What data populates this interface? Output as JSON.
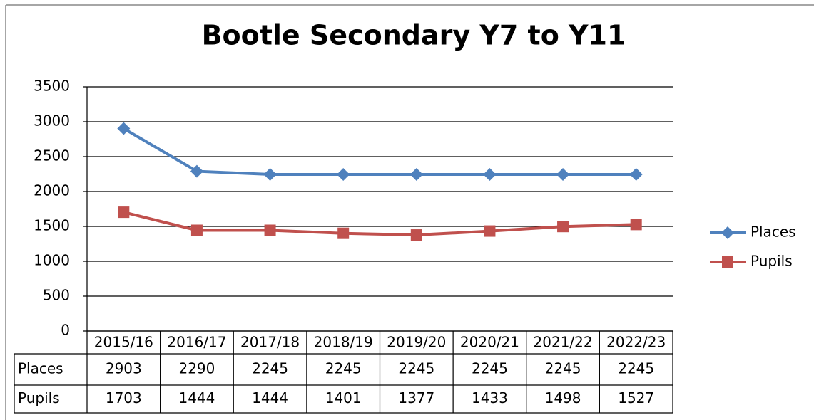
{
  "chart_data": {
    "type": "line",
    "title": "Bootle Secondary Y7 to Y11",
    "categories": [
      "2015/16",
      "2016/17",
      "2017/18",
      "2018/19",
      "2019/20",
      "2020/21",
      "2021/22",
      "2022/23"
    ],
    "series": [
      {
        "name": "Places",
        "color": "#4f81bd",
        "values": [
          2903,
          2290,
          2245,
          2245,
          2245,
          2245,
          2245,
          2245
        ]
      },
      {
        "name": "Pupils",
        "color": "#c0504d",
        "values": [
          1703,
          1444,
          1444,
          1401,
          1377,
          1433,
          1498,
          1527
        ]
      }
    ],
    "ylim": [
      0,
      3500
    ],
    "yticks": [
      0,
      500,
      1000,
      1500,
      2000,
      2500,
      3000,
      3500
    ],
    "grid": true,
    "legend": "right",
    "data_table": true
  }
}
